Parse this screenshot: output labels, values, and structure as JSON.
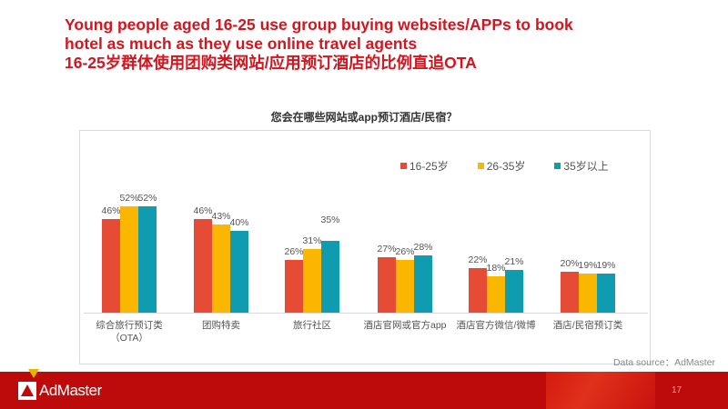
{
  "slide": {
    "title_en_line1": "Young people aged 16-25 use group buying websites/APPs to book",
    "title_en_line2": "hotel as much as they use online travel agents",
    "title_cn": "16-25岁群体使用团购类网站/应用预订酒店的比例直追OTA",
    "data_source": "Data source：AdMaster",
    "page_number": "17",
    "logo_text": "AdMaster"
  },
  "colors": {
    "series_16_25": "#e64b35",
    "series_26_35": "#fbb700",
    "series_35_plus": "#0f9bb0",
    "title": "#d2151e",
    "footer": "#bd0a0a"
  },
  "chart_data": {
    "type": "bar",
    "title": "您会在哪些网站或app预订酒店/民宿？",
    "xlabel": "",
    "ylabel": "",
    "ylim": [
      0,
      60
    ],
    "grid": false,
    "legend_position": "top-right",
    "categories": [
      "综合旅行预订类（OTA）",
      "团购特卖",
      "旅行社区",
      "酒店官网或官方app",
      "酒店官方微信/微博",
      "酒店/民宿预订类"
    ],
    "category_lines": [
      [
        "综合旅行预订类",
        "（OTA）"
      ],
      [
        "团购特卖"
      ],
      [
        "旅行社区"
      ],
      [
        "酒店官网或官方app"
      ],
      [
        "酒店官方微信/微博"
      ],
      [
        "酒店/民宿预订类"
      ]
    ],
    "series": [
      {
        "name": "16-25岁",
        "color": "#e64b35",
        "values": [
          46,
          46,
          26,
          27,
          22,
          20
        ],
        "labels": [
          "46%",
          "46%",
          "26%",
          "27%",
          "22%",
          "20%"
        ]
      },
      {
        "name": "26-35岁",
        "color": "#fbb700",
        "values": [
          52,
          43,
          31,
          26,
          18,
          19
        ],
        "labels": [
          "52%",
          "43%",
          "31%",
          "26%",
          "18%",
          "19%"
        ]
      },
      {
        "name": "35岁以上",
        "color": "#0f9bb0",
        "values": [
          52,
          40,
          35,
          28,
          21,
          19
        ],
        "labels": [
          "52%",
          "40%",
          "35%",
          "28%",
          "21%",
          "19%"
        ]
      }
    ]
  }
}
